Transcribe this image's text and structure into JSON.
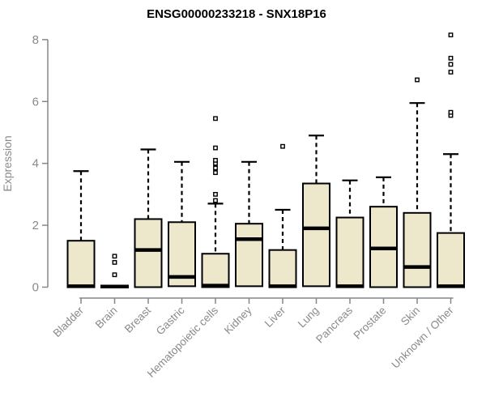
{
  "chart_data": {
    "type": "boxplot",
    "title": "ENSG00000233218 - SNX18P16",
    "xlabel": "",
    "ylabel": "Expression",
    "ylim": [
      0,
      8
    ],
    "yticks": [
      0,
      2,
      4,
      6,
      8
    ],
    "grid": false,
    "legend": "none",
    "colors": {
      "box_fill": "#EDE8CC",
      "box_border": "#000000",
      "median": "#000000",
      "whisker": "#000000",
      "outlier_fill": "#ffffff",
      "axis": "#878787",
      "tick_label": "#8a8a8a",
      "title": "#000000"
    },
    "categories": [
      "Bladder",
      "Brain",
      "Breast",
      "Gastric",
      "Hematopoietic cells",
      "Kidney",
      "Liver",
      "Lung",
      "Pancreas",
      "Prostate",
      "Skin",
      "Unknown / Other"
    ],
    "series": [
      {
        "name": "Bladder",
        "whisker_low": 0,
        "q1": 0,
        "median": 0.03,
        "q3": 1.5,
        "whisker_high": 3.75,
        "outliers": []
      },
      {
        "name": "Brain",
        "whisker_low": 0,
        "q1": 0,
        "median": 0.02,
        "q3": 0.04,
        "whisker_high": 0.04,
        "outliers": [
          0.4,
          0.8,
          1.0
        ]
      },
      {
        "name": "Breast",
        "whisker_low": 0,
        "q1": 0,
        "median": 1.2,
        "q3": 2.2,
        "whisker_high": 4.45,
        "outliers": []
      },
      {
        "name": "Gastric",
        "whisker_low": 0,
        "q1": 0.03,
        "median": 0.33,
        "q3": 2.1,
        "whisker_high": 4.05,
        "outliers": []
      },
      {
        "name": "Hematopoietic cells",
        "whisker_low": 0,
        "q1": 0,
        "median": 0.05,
        "q3": 1.08,
        "whisker_high": 2.7,
        "outliers": [
          2.8,
          3.0,
          3.7,
          3.85,
          4.0,
          4.1,
          4.5,
          5.45
        ]
      },
      {
        "name": "Kidney",
        "whisker_low": 0,
        "q1": 0.03,
        "median": 1.55,
        "q3": 2.05,
        "whisker_high": 4.05,
        "outliers": []
      },
      {
        "name": "Liver",
        "whisker_low": 0,
        "q1": 0,
        "median": 0.03,
        "q3": 1.2,
        "whisker_high": 2.5,
        "outliers": [
          4.55
        ]
      },
      {
        "name": "Lung",
        "whisker_low": 0,
        "q1": 0.03,
        "median": 1.9,
        "q3": 3.35,
        "whisker_high": 4.9,
        "outliers": []
      },
      {
        "name": "Pancreas",
        "whisker_low": 0,
        "q1": 0,
        "median": 0.03,
        "q3": 2.25,
        "whisker_high": 3.45,
        "outliers": []
      },
      {
        "name": "Prostate",
        "whisker_low": 0,
        "q1": 0,
        "median": 1.25,
        "q3": 2.6,
        "whisker_high": 3.55,
        "outliers": []
      },
      {
        "name": "Skin",
        "whisker_low": 0,
        "q1": 0,
        "median": 0.65,
        "q3": 2.4,
        "whisker_high": 5.95,
        "outliers": [
          6.7
        ]
      },
      {
        "name": "Unknown / Other",
        "whisker_low": 0,
        "q1": 0,
        "median": 0.03,
        "q3": 1.75,
        "whisker_high": 4.3,
        "outliers": [
          5.55,
          5.65,
          6.95,
          7.2,
          7.4,
          8.15
        ]
      }
    ]
  }
}
